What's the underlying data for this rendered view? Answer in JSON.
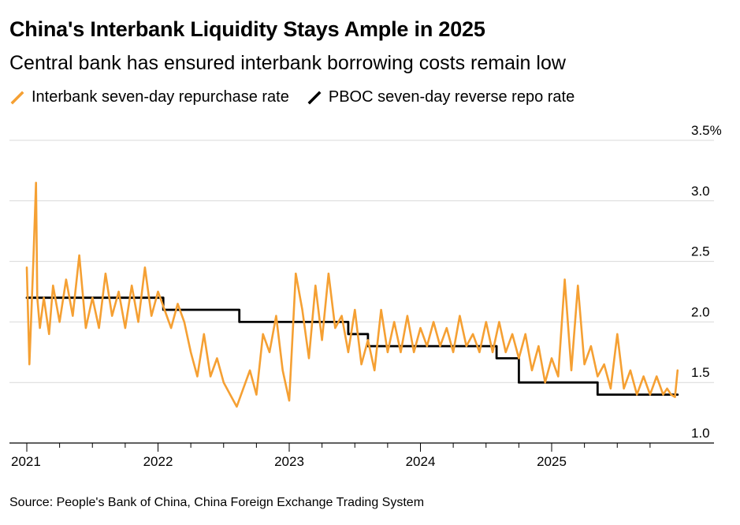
{
  "header": {
    "title": "China's Interbank Liquidity Stays Ample in 2025",
    "subtitle": "Central bank has ensured interbank borrowing costs remain low"
  },
  "legend": {
    "items": [
      {
        "label": "Interbank seven-day repurchase rate",
        "color": "#f5a033"
      },
      {
        "label": "PBOC seven-day reverse repo rate",
        "color": "#000000"
      }
    ]
  },
  "footer": {
    "source": "Source: People's Bank of China, China Foreign Exchange Trading System"
  },
  "chart_data": {
    "type": "line",
    "title": "China's Interbank Liquidity Stays Ample in 2025",
    "xlabel": "",
    "ylabel": "",
    "xlim": [
      2021.0,
      2026.0
    ],
    "ylim": [
      1.0,
      3.5
    ],
    "y_ticks": [
      1.0,
      1.5,
      2.0,
      2.5,
      3.0,
      3.5
    ],
    "y_tick_labels": [
      "1.0",
      "1.5",
      "2.0",
      "2.5",
      "3.0",
      "3.5%"
    ],
    "x_ticks": [
      2021,
      2022,
      2023,
      2024,
      2025
    ],
    "x_tick_labels": [
      "2021",
      "2022",
      "2023",
      "2024",
      "2025"
    ],
    "grid": true,
    "legend_position": "top-left",
    "series": [
      {
        "name": "Interbank seven-day repurchase rate",
        "color": "#f5a033",
        "x": [
          2021.0,
          2021.02,
          2021.05,
          2021.07,
          2021.08,
          2021.1,
          2021.13,
          2021.17,
          2021.2,
          2021.25,
          2021.3,
          2021.35,
          2021.4,
          2021.45,
          2021.5,
          2021.55,
          2021.6,
          2021.65,
          2021.7,
          2021.75,
          2021.8,
          2021.85,
          2021.9,
          2021.95,
          2022.0,
          2022.05,
          2022.1,
          2022.15,
          2022.2,
          2022.25,
          2022.3,
          2022.35,
          2022.4,
          2022.45,
          2022.5,
          2022.55,
          2022.6,
          2022.65,
          2022.7,
          2022.75,
          2022.8,
          2022.85,
          2022.9,
          2022.95,
          2023.0,
          2023.05,
          2023.1,
          2023.15,
          2023.2,
          2023.25,
          2023.3,
          2023.35,
          2023.4,
          2023.45,
          2023.5,
          2023.55,
          2023.6,
          2023.65,
          2023.7,
          2023.75,
          2023.8,
          2023.85,
          2023.9,
          2023.95,
          2024.0,
          2024.05,
          2024.1,
          2024.15,
          2024.2,
          2024.25,
          2024.3,
          2024.35,
          2024.4,
          2024.45,
          2024.5,
          2024.55,
          2024.6,
          2024.65,
          2024.7,
          2024.75,
          2024.8,
          2024.85,
          2024.9,
          2024.95,
          2025.0,
          2025.05,
          2025.1,
          2025.15,
          2025.2,
          2025.25,
          2025.3,
          2025.35,
          2025.4,
          2025.45,
          2025.5,
          2025.55,
          2025.6,
          2025.65,
          2025.7,
          2025.75,
          2025.8,
          2025.85,
          2025.88,
          2025.91,
          2025.94,
          2025.96
        ],
        "values": [
          2.45,
          1.65,
          2.5,
          3.15,
          2.2,
          1.95,
          2.2,
          1.9,
          2.3,
          2.0,
          2.35,
          2.05,
          2.55,
          1.95,
          2.2,
          1.95,
          2.4,
          2.05,
          2.25,
          1.95,
          2.3,
          2.0,
          2.45,
          2.05,
          2.25,
          2.1,
          1.95,
          2.15,
          2.0,
          1.75,
          1.55,
          1.9,
          1.55,
          1.7,
          1.5,
          1.4,
          1.3,
          1.45,
          1.6,
          1.4,
          1.9,
          1.75,
          2.05,
          1.6,
          1.35,
          2.4,
          2.1,
          1.7,
          2.3,
          1.85,
          2.4,
          1.95,
          2.05,
          1.75,
          2.1,
          1.65,
          1.85,
          1.6,
          2.1,
          1.75,
          2.0,
          1.75,
          2.05,
          1.75,
          1.95,
          1.8,
          2.0,
          1.8,
          1.95,
          1.75,
          2.05,
          1.8,
          1.9,
          1.75,
          2.0,
          1.75,
          2.0,
          1.75,
          1.9,
          1.7,
          1.9,
          1.6,
          1.8,
          1.5,
          1.7,
          1.55,
          2.35,
          1.6,
          2.3,
          1.65,
          1.8,
          1.55,
          1.65,
          1.45,
          1.9,
          1.45,
          1.6,
          1.4,
          1.55,
          1.4,
          1.55,
          1.4,
          1.45,
          1.4,
          1.38,
          1.6
        ]
      },
      {
        "name": "PBOC seven-day reverse repo rate",
        "color": "#000000",
        "x": [
          2021.0,
          2022.04,
          2022.04,
          2022.62,
          2022.62,
          2023.45,
          2023.45,
          2023.6,
          2023.6,
          2024.58,
          2024.58,
          2024.75,
          2024.75,
          2025.35,
          2025.35,
          2025.96
        ],
        "values": [
          2.2,
          2.2,
          2.1,
          2.1,
          2.0,
          2.0,
          1.9,
          1.9,
          1.8,
          1.8,
          1.7,
          1.7,
          1.5,
          1.5,
          1.4,
          1.4
        ]
      }
    ]
  }
}
